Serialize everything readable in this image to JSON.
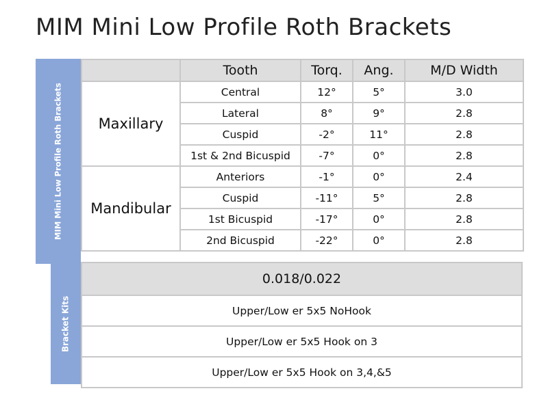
{
  "title": "MIM Mini Low Profile Roth Brackets",
  "side_labels": {
    "specs": "MIM Mini Low Profile Roth Brackets",
    "kits": "Bracket Kits"
  },
  "table": {
    "headers": [
      "Tooth",
      "Torq.",
      "Ang.",
      "M/D Width"
    ],
    "groups": [
      {
        "name": "Maxillary",
        "rows": [
          {
            "tooth": "Central",
            "torq": "12°",
            "ang": "5°",
            "width": "3.0"
          },
          {
            "tooth": "Lateral",
            "torq": "8°",
            "ang": "9°",
            "width": "2.8"
          },
          {
            "tooth": "Cuspid",
            "torq": "-2°",
            "ang": "11°",
            "width": "2.8"
          },
          {
            "tooth": "1st & 2nd Bicuspid",
            "torq": "-7°",
            "ang": "0°",
            "width": "2.8"
          }
        ]
      },
      {
        "name": "Mandibular",
        "rows": [
          {
            "tooth": "Anteriors",
            "torq": "-1°",
            "ang": "0°",
            "width": "2.4"
          },
          {
            "tooth": "Cuspid",
            "torq": "-11°",
            "ang": "5°",
            "width": "2.8"
          },
          {
            "tooth": "1st Bicuspid",
            "torq": "-17°",
            "ang": "0°",
            "width": "2.8"
          },
          {
            "tooth": "2nd Bicuspid",
            "torq": "-22°",
            "ang": "0°",
            "width": "2.8"
          }
        ]
      }
    ]
  },
  "kits": {
    "slot_size": "0.018/0.022",
    "items": [
      "Upper/Low er 5x5 NoHook",
      "Upper/Low er 5x5 Hook on 3",
      "Upper/Low er 5x5 Hook on 3,4,&5"
    ]
  }
}
